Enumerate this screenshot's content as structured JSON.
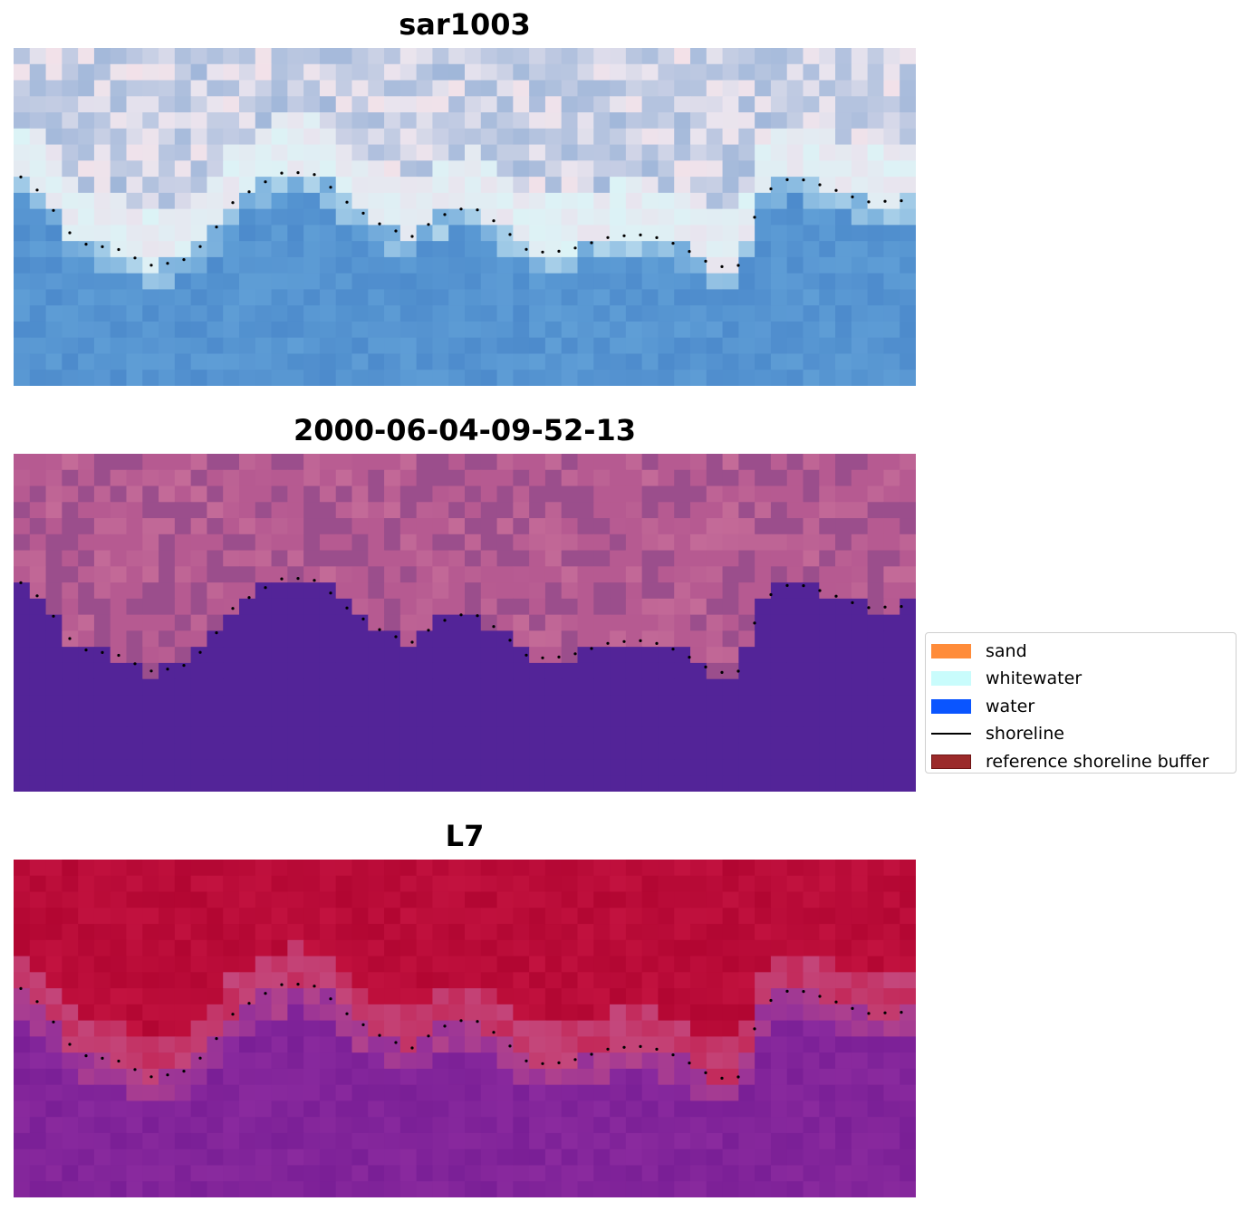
{
  "panels": [
    {
      "title": "sar1003",
      "kind": "rgb",
      "colors": {
        "land_light": "#e9e4ee",
        "land_blue": "#9fb6d9",
        "land_pink": "#f3e1e8",
        "foam": "#dcf3f6",
        "water_shallow": "#5f9ed6",
        "water_deep": "#4d8bcc"
      }
    },
    {
      "title": "2000-06-04-09-52-13",
      "kind": "classified",
      "colors": {
        "land_a": "#b65a91",
        "land_b": "#9b4e8c",
        "land_c": "#c46b98",
        "water": "#532498"
      }
    },
    {
      "title": "L7",
      "kind": "index",
      "colors": {
        "land_a": "#c2123f",
        "land_b": "#b20632",
        "mid": "#c44e84",
        "water_a": "#8a2a9e",
        "water_b": "#7a1f96"
      }
    }
  ],
  "shoreline_color": "#000000",
  "legend": {
    "items": [
      {
        "label": "sand",
        "type": "patch",
        "color": "#ff8c3a"
      },
      {
        "label": "whitewater",
        "type": "patch",
        "color": "#c9fcfc"
      },
      {
        "label": "water",
        "type": "patch",
        "color": "#0a55ff"
      },
      {
        "label": "shoreline",
        "type": "line",
        "color": "#000000"
      },
      {
        "label": "reference shoreline buffer",
        "type": "patch",
        "color": "#9b2a2a",
        "edge": "#6e1414"
      }
    ]
  }
}
